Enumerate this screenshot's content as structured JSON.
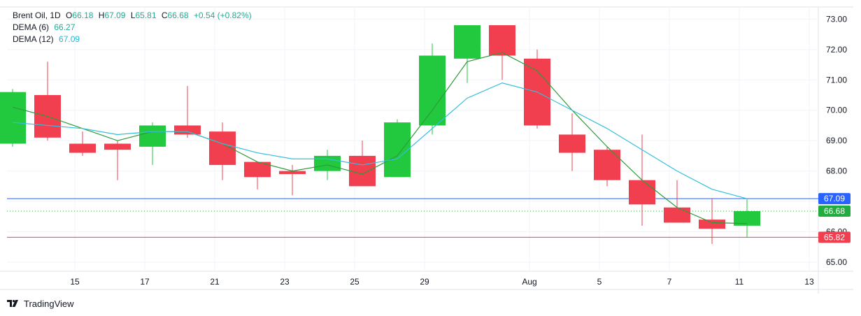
{
  "header": {
    "symbol": "Brent Oil",
    "interval": "1D",
    "o_label": "O",
    "o_value": "66.18",
    "h_label": "H",
    "h_value": "67.09",
    "l_label": "L",
    "l_value": "65.81",
    "c_label": "C",
    "c_value": "66.68",
    "change": "+0.54 (+0.82%)"
  },
  "indicators": [
    {
      "label": "DEMA (6)",
      "value": "66.27",
      "color": "#22ab94"
    },
    {
      "label": "DEMA (12)",
      "value": "67.09",
      "color": "#26b7d4"
    }
  ],
  "brand": {
    "name": "TradingView"
  },
  "colors": {
    "up": "#22c93e",
    "down": "#f23f4f",
    "dema6": "#2e9b3a",
    "dema12": "#33bfdc",
    "blue_line": "#2962ff",
    "red_line": "#f23f4f",
    "green_dotted": "#22ab3e"
  },
  "chart_data": {
    "type": "candlestick",
    "ylim": [
      64.7,
      73.4
    ],
    "y_ticks": [
      "65.00",
      "66.00",
      "67.00",
      "68.00",
      "69.00",
      "70.00",
      "71.00",
      "72.00",
      "73.00"
    ],
    "x_tick_labels": [
      {
        "label": "15",
        "slot": 2
      },
      {
        "label": "17",
        "slot": 4
      },
      {
        "label": "21",
        "slot": 6
      },
      {
        "label": "23",
        "slot": 8
      },
      {
        "label": "25",
        "slot": 10
      },
      {
        "label": "29",
        "slot": 12
      },
      {
        "label": "Aug",
        "slot": 15
      },
      {
        "label": "5",
        "slot": 17
      },
      {
        "label": "7",
        "slot": 19
      },
      {
        "label": "11",
        "slot": 21
      },
      {
        "label": "13",
        "slot": 23
      }
    ],
    "candles": [
      {
        "o": 68.9,
        "h": 70.7,
        "l": 68.8,
        "c": 70.6
      },
      {
        "o": 70.5,
        "h": 71.6,
        "l": 69.0,
        "c": 69.1
      },
      {
        "o": 68.9,
        "h": 69.3,
        "l": 68.5,
        "c": 68.6
      },
      {
        "o": 68.9,
        "h": 69.0,
        "l": 67.7,
        "c": 68.7
      },
      {
        "o": 68.8,
        "h": 69.6,
        "l": 68.2,
        "c": 69.5
      },
      {
        "o": 69.5,
        "h": 70.8,
        "l": 69.1,
        "c": 69.2
      },
      {
        "o": 69.3,
        "h": 69.6,
        "l": 67.7,
        "c": 68.2
      },
      {
        "o": 68.3,
        "h": 68.3,
        "l": 67.4,
        "c": 67.8
      },
      {
        "o": 68.0,
        "h": 68.2,
        "l": 67.2,
        "c": 67.9
      },
      {
        "o": 68.0,
        "h": 68.7,
        "l": 67.7,
        "c": 68.5
      },
      {
        "o": 68.5,
        "h": 69.0,
        "l": 67.5,
        "c": 67.5
      },
      {
        "o": 67.8,
        "h": 69.7,
        "l": 67.8,
        "c": 69.6
      },
      {
        "o": 69.5,
        "h": 72.2,
        "l": 69.2,
        "c": 71.8
      },
      {
        "o": 71.7,
        "h": 72.8,
        "l": 70.9,
        "c": 72.8
      },
      {
        "o": 72.8,
        "h": 72.8,
        "l": 71.0,
        "c": 71.8
      },
      {
        "o": 71.7,
        "h": 72.0,
        "l": 69.4,
        "c": 69.5
      },
      {
        "o": 69.2,
        "h": 69.9,
        "l": 68.0,
        "c": 68.6
      },
      {
        "o": 68.7,
        "h": 68.8,
        "l": 67.5,
        "c": 67.7
      },
      {
        "o": 67.7,
        "h": 69.2,
        "l": 66.2,
        "c": 66.9
      },
      {
        "o": 66.8,
        "h": 67.7,
        "l": 66.3,
        "c": 66.3
      },
      {
        "o": 66.4,
        "h": 67.1,
        "l": 65.6,
        "c": 66.1
      },
      {
        "o": 66.2,
        "h": 67.09,
        "l": 65.81,
        "c": 66.68
      }
    ],
    "series": [
      {
        "name": "DEMA (6)",
        "values": [
          70.1,
          69.8,
          69.4,
          69.0,
          69.3,
          69.3,
          68.9,
          68.3,
          68.0,
          68.2,
          67.9,
          68.5,
          70.0,
          71.6,
          71.9,
          71.3,
          70.0,
          68.8,
          67.7,
          66.8,
          66.3,
          66.27
        ]
      },
      {
        "name": "DEMA (12)",
        "values": [
          69.6,
          69.5,
          69.4,
          69.2,
          69.3,
          69.3,
          68.9,
          68.6,
          68.4,
          68.4,
          68.2,
          68.4,
          69.4,
          70.4,
          70.9,
          70.6,
          70.0,
          69.4,
          68.7,
          68.0,
          67.4,
          67.09
        ]
      }
    ],
    "price_labels": [
      {
        "value": 67.09,
        "text": "67.09",
        "color": "#2962ff",
        "line": "solid"
      },
      {
        "value": 66.68,
        "text": "66.68",
        "color": "#22ab3e",
        "line": "dotted"
      },
      {
        "value": 65.82,
        "text": "65.82",
        "color": "#f23f4f",
        "line": "solid"
      }
    ]
  }
}
